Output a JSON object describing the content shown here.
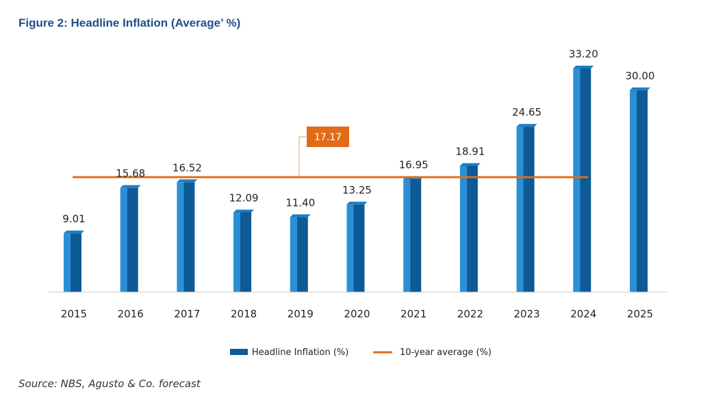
{
  "figure": {
    "title": "Figure 2: Headline Inflation (Average’ %)",
    "source": "Source: NBS, Agusto & Co. forecast"
  },
  "chart_data": {
    "type": "bar",
    "categories": [
      "2015",
      "2016",
      "2017",
      "2018",
      "2019",
      "2020",
      "2021",
      "2022",
      "2023",
      "2024",
      "2025"
    ],
    "series": [
      {
        "name": "Headline Inflation (%)",
        "values": [
          9.01,
          15.68,
          16.52,
          12.09,
          11.4,
          13.25,
          16.95,
          18.91,
          24.65,
          33.2,
          30.0
        ],
        "labels": [
          "9.01",
          "15.68",
          "16.52",
          "12.09",
          "11.40",
          "13.25",
          "16.95",
          "18.91",
          "24.65",
          "33.20",
          "30.00"
        ],
        "color": "#0e5a96",
        "type": "bar"
      },
      {
        "name": "10-year average (%)",
        "value": 17.17,
        "label": "17.17",
        "span": [
          "2015",
          "2024"
        ],
        "color": "#e06c1a",
        "type": "line"
      }
    ],
    "ylim": [
      0,
      36
    ],
    "grid": false,
    "legend_position": "bottom"
  }
}
